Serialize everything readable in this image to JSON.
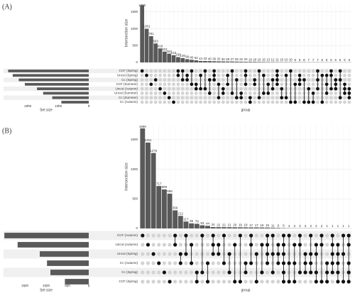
{
  "chart_data": [
    {
      "type": "upset",
      "panel_label": "(A)",
      "ylabel": "Intersection size",
      "xlabel": "group",
      "set_size_label": "Set size",
      "color": "#595959",
      "ylim": [
        0,
        1750
      ],
      "yticks": [
        0,
        500,
        1000,
        1500
      ],
      "values": [
        1700,
        1001,
        781,
        563,
        416,
        322,
        262,
        215,
        158,
        130,
        98,
        80,
        62,
        44,
        43,
        40,
        36,
        32,
        30,
        28,
        27,
        25,
        22,
        20,
        19,
        18,
        16,
        15,
        13,
        12,
        11,
        10,
        10,
        10,
        9,
        8,
        8,
        7,
        7,
        7,
        6,
        6,
        6,
        5,
        5,
        5,
        5
      ],
      "members": [
        [
          0
        ],
        [
          1
        ],
        [
          3
        ],
        [
          2
        ],
        [
          4
        ],
        [
          5
        ],
        [
          6
        ],
        [
          7
        ],
        [
          0,
          1
        ],
        [
          0,
          2
        ],
        [
          1,
          2
        ],
        [
          0,
          3
        ],
        [
          3,
          4
        ],
        [
          1,
          4
        ],
        [
          0,
          4
        ],
        [
          2,
          5
        ],
        [
          0,
          1,
          2
        ],
        [
          3,
          6
        ],
        [
          4,
          5
        ],
        [
          1,
          3
        ],
        [
          0,
          5
        ],
        [
          2,
          6
        ],
        [
          5,
          6
        ],
        [
          0,
          1,
          3
        ],
        [
          6,
          7
        ],
        [
          2,
          3
        ],
        [
          0,
          6
        ],
        [
          1,
          5
        ],
        [
          3,
          5
        ],
        [
          2,
          4
        ],
        [
          0,
          1,
          2,
          3
        ],
        [
          4,
          6
        ],
        [
          1,
          6
        ],
        [
          0,
          7
        ],
        [
          3,
          7
        ],
        [
          1,
          2,
          3
        ],
        [
          2,
          7
        ],
        [
          4,
          7
        ],
        [
          5,
          7
        ],
        [
          0,
          2,
          4
        ],
        [
          1,
          7
        ],
        [
          1,
          3,
          5
        ],
        [
          0,
          1,
          4
        ],
        [
          2,
          3,
          4
        ],
        [
          0,
          2,
          6
        ],
        [
          3,
          4,
          5
        ],
        [
          4,
          5,
          6
        ]
      ],
      "sets": [
        "CCF (Spring)",
        "Uncut (Spring)",
        "Cc (Spring)",
        "CCF (Summer)",
        "Uncut (Autumn)",
        "Uncut (Summer)",
        "Cc (Summer)",
        "Cc (Autumn)"
      ],
      "set_sizes": [
        2650,
        2500,
        2300,
        2100,
        1700,
        1500,
        1200,
        900
      ],
      "set_size_xlim": [
        2800,
        0
      ],
      "set_size_ticks": [
        2000,
        1000,
        0
      ]
    },
    {
      "type": "upset",
      "panel_label": "(B)",
      "ylabel": "Intersection size",
      "xlabel": "group",
      "set_size_label": "Set size",
      "color": "#595959",
      "ylim": [
        0,
        1750
      ],
      "yticks": [
        0,
        500,
        1000,
        1500
      ],
      "values": [
        1690,
        1451,
        1275,
        717,
        659,
        588,
        306,
        212,
        117,
        86,
        79,
        53,
        44,
        24,
        22,
        22,
        21,
        20,
        19,
        18,
        17,
        17,
        16,
        15,
        11,
        9,
        6,
        4,
        3,
        3,
        3,
        3,
        2,
        2,
        1,
        1,
        1,
        1,
        1
      ],
      "members": [
        [
          0
        ],
        [
          1
        ],
        [
          2
        ],
        [
          3
        ],
        [
          4
        ],
        [
          5
        ],
        [
          0,
          1
        ],
        [
          2,
          3
        ],
        [
          0,
          2
        ],
        [
          1,
          3
        ],
        [
          4,
          5
        ],
        [
          0,
          4
        ],
        [
          3,
          5
        ],
        [
          0,
          1,
          2
        ],
        [
          1,
          2
        ],
        [
          0,
          3
        ],
        [
          2,
          4
        ],
        [
          1,
          5
        ],
        [
          0,
          5
        ],
        [
          3,
          4
        ],
        [
          0,
          1,
          3
        ],
        [
          2,
          5
        ],
        [
          1,
          4
        ],
        [
          0,
          1,
          2,
          3
        ],
        [
          0,
          2,
          4
        ],
        [
          1,
          2,
          3
        ],
        [
          0,
          1,
          2,
          3,
          4,
          5
        ],
        [
          0,
          3,
          5
        ],
        [
          1,
          3,
          5
        ],
        [
          0,
          1,
          4
        ],
        [
          2,
          3,
          4
        ],
        [
          0,
          2,
          3,
          4
        ],
        [
          1,
          2,
          4,
          5
        ],
        [
          0,
          1,
          5
        ],
        [
          3,
          4,
          5
        ],
        [
          0,
          1,
          2,
          3,
          4
        ],
        [
          1,
          2,
          3,
          4,
          5
        ],
        [
          0,
          2,
          5
        ],
        [
          0,
          1,
          3,
          4,
          5
        ]
      ],
      "sets": [
        "CCF (Autumn)",
        "Uncut (Autumn)",
        "Uncut (Spring)",
        "Cc (Autumn)",
        "Cc (Spring)",
        "CCF (Spring)"
      ],
      "set_sizes": [
        1980,
        1670,
        1150,
        980,
        900,
        560
      ],
      "set_size_xlim": [
        2000,
        0
      ],
      "set_size_ticks": [
        1500,
        1000,
        500,
        0
      ]
    }
  ]
}
